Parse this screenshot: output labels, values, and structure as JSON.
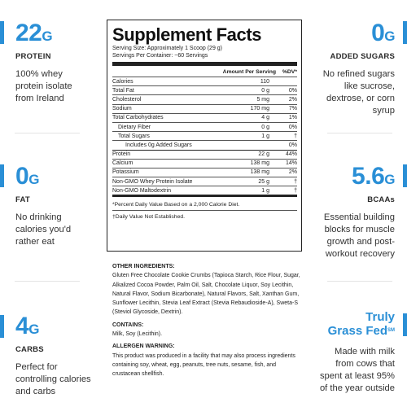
{
  "left_stats": [
    {
      "number": "22",
      "unit": "G",
      "label": "PROTEIN",
      "lines": [
        "100% whey",
        "protein isolate",
        "from Ireland"
      ]
    },
    {
      "number": "0",
      "unit": "G",
      "label": "FAT",
      "lines": [
        "No drinking",
        "calories you'd",
        "rather eat"
      ]
    },
    {
      "number": "4",
      "unit": "G",
      "label": "CARBS",
      "lines": [
        "Perfect for",
        "controlling calories",
        "and carbs"
      ]
    }
  ],
  "right_stats": [
    {
      "number": "0",
      "unit": "G",
      "label": "ADDED SUGARS",
      "lines": [
        "No refined sugars",
        "like sucrose,",
        "dextrose, or corn",
        "syrup"
      ]
    },
    {
      "number": "5.6",
      "unit": "G",
      "label": "BCAAs",
      "lines": [
        "Essential building",
        "blocks for muscle",
        "growth and post-",
        "workout recovery"
      ]
    }
  ],
  "grass_fed": {
    "title_line1": "Truly",
    "title_line2": "Grass Fed",
    "mark": "SM",
    "lines": [
      "Made with milk",
      "from cows that",
      "spent at least 95%",
      "of the year outside"
    ]
  },
  "facts": {
    "title": "Supplement Facts",
    "serving_size": "Serving Size: Approximately 1 Scoop (29 g)",
    "servings_per_container": "Servings Per Container: ~60 Servings",
    "col_amount": "Amount Per Serving",
    "col_dv": "%DV*",
    "rows": [
      {
        "name": "Calories",
        "amount": "110",
        "dv": ""
      },
      {
        "name": "Total Fat",
        "amount": "0 g",
        "dv": "0%"
      },
      {
        "name": "Cholesterol",
        "amount": "5 mg",
        "dv": "2%"
      },
      {
        "name": "Sodium",
        "amount": "170 mg",
        "dv": "7%"
      },
      {
        "name": "Total Carbohydrates",
        "amount": "4 g",
        "dv": "1%"
      },
      {
        "name": "Dietary Fiber",
        "amount": "0 g",
        "dv": "0%"
      },
      {
        "name": "Total Sugars",
        "amount": "1 g",
        "dv": "†"
      },
      {
        "name": "Includes 0g Added Sugars",
        "amount": "",
        "dv": "0%"
      },
      {
        "name": "Protein",
        "amount": "22 g",
        "dv": "44%"
      },
      {
        "name": "Calcium",
        "amount": "138 mg",
        "dv": "14%"
      },
      {
        "name": "Potassium",
        "amount": "138 mg",
        "dv": "2%"
      },
      {
        "name": "Non-GMO Whey Protein Isolate",
        "amount": "25 g",
        "dv": "†"
      },
      {
        "name": "Non-GMO Maltodextrin",
        "amount": "1 g",
        "dv": "†"
      }
    ],
    "footnote1": "*Percent Daily Value Based on a 2,000 Calorie Diet.",
    "footnote2": "†Daily Value Not Established."
  },
  "ingredients": {
    "other_heading": "OTHER INGREDIENTS:",
    "other_text": "Gluten Free Chocolate Cookie Crumbs (Tapioca Starch, Rice Flour, Sugar, Alkalized Cocoa Powder, Palm Oil, Salt, Chocolate Liquor, Soy Lecithin, Natural Flavor, Sodium Bicarbonate), Natural Flavors, Salt, Xanthan Gum, Sunflower Lecithin, Stevia Leaf Extract (Stevia Rebaudioside-A), Sweta-S (Steviol Glycoside, Dextrin).",
    "contains_heading": "CONTAINS:",
    "contains_text": "Milk, Soy (Lecithin).",
    "allergen_heading": "ALLERGEN WARNING:",
    "allergen_text": "This product was produced in a facility that may also process ingredients containing soy, wheat, egg, peanuts, tree nuts, sesame, fish, and crustacean shellfish."
  },
  "colors": {
    "accent": "#2a8fd6",
    "text": "#333333"
  }
}
